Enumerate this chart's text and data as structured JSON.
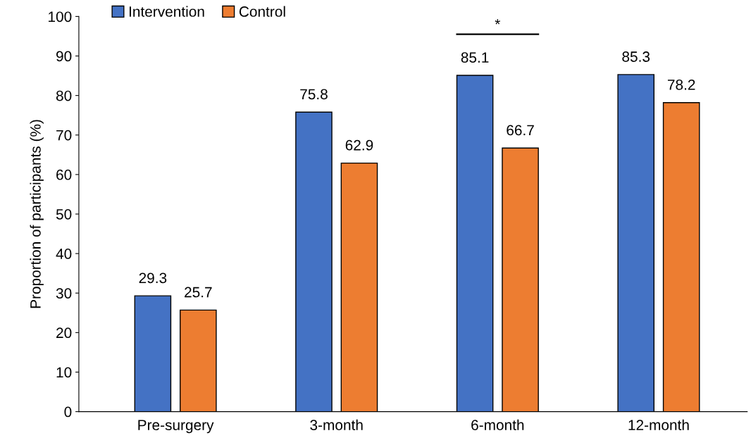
{
  "chart_data": {
    "type": "bar",
    "ylabel": "Proportion of participants (%)",
    "categories": [
      "Pre-surgery",
      "3-month",
      "6-month",
      "12-month"
    ],
    "series": [
      {
        "name": "Intervention",
        "color": "#4472c4",
        "values": [
          29.3,
          75.8,
          85.1,
          85.3
        ]
      },
      {
        "name": "Control",
        "color": "#ed7d31",
        "values": [
          25.7,
          62.9,
          66.7,
          78.2
        ]
      }
    ],
    "ylim": [
      0,
      100
    ],
    "yticks": [
      0,
      10,
      20,
      30,
      40,
      50,
      60,
      70,
      80,
      90,
      100
    ],
    "data_labels": true,
    "legend": "top left",
    "grid": false,
    "annotations": [
      "*"
    ]
  }
}
